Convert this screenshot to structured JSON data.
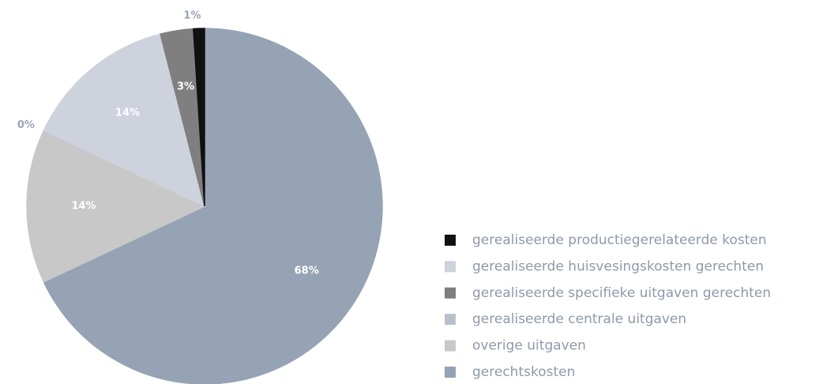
{
  "chart_data": {
    "type": "pie",
    "categories": [
      "gerealiseerde productiegerelateerde kosten",
      "gerealiseerde huisvesingskosten gerechten",
      "gerealiseerde specifieke uitgaven gerechten",
      "gerealiseerde centrale uitgaven",
      "overige uitgaven",
      "gerechtskosten"
    ],
    "values": [
      1,
      14,
      3,
      0,
      14,
      68
    ],
    "value_labels": [
      "1%",
      "14%",
      "3%",
      "0%",
      "14%",
      "68%"
    ],
    "colors": [
      "#111111",
      "#cdd2dc",
      "#7f7f7f",
      "#b9c0cc",
      "#c8c8c8",
      "#95a3b5"
    ],
    "legend": "right"
  }
}
